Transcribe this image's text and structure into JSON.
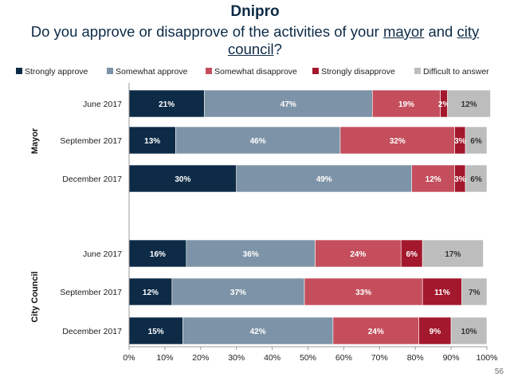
{
  "chart_data": {
    "type": "bar",
    "orientation": "horizontal",
    "stacked": true,
    "title": "Dnipro",
    "subtitle_parts": [
      {
        "text": "Do you approve or disapprove of the activities of your ",
        "underline": false
      },
      {
        "text": "mayor",
        "underline": true
      },
      {
        "text": " and ",
        "underline": false
      },
      {
        "text": "city council",
        "underline": true
      },
      {
        "text": "?",
        "underline": false
      }
    ],
    "legend_position": "top",
    "xlim": [
      0,
      100
    ],
    "x_ticks": [
      "0%",
      "10%",
      "20%",
      "30%",
      "40%",
      "50%",
      "60%",
      "70%",
      "80%",
      "90%",
      "100%"
    ],
    "grid": false,
    "groups": [
      {
        "label": "Mayor",
        "categories": [
          "June  2017",
          "September 2017",
          "December 2017"
        ]
      },
      {
        "label": "City Council",
        "categories": [
          "June 2017",
          "September 2017",
          "December 2017"
        ]
      }
    ],
    "series": [
      {
        "name": "Strongly approve",
        "color": "#0d2b47",
        "values": [
          21,
          13,
          30,
          16,
          12,
          15
        ]
      },
      {
        "name": "Somewhat approve",
        "color": "#7d93a7",
        "values": [
          47,
          46,
          49,
          36,
          37,
          42
        ]
      },
      {
        "name": "Somewhat disapprove",
        "color": "#c44e5c",
        "values": [
          19,
          32,
          12,
          24,
          33,
          24
        ]
      },
      {
        "name": "Strongly disapprove",
        "color": "#a3182c",
        "values": [
          2,
          3,
          3,
          6,
          11,
          9
        ]
      },
      {
        "name": "Difficult to answer",
        "color": "#bdbdbd",
        "values": [
          12,
          6,
          6,
          17,
          7,
          10
        ]
      }
    ]
  },
  "page_number": "56"
}
